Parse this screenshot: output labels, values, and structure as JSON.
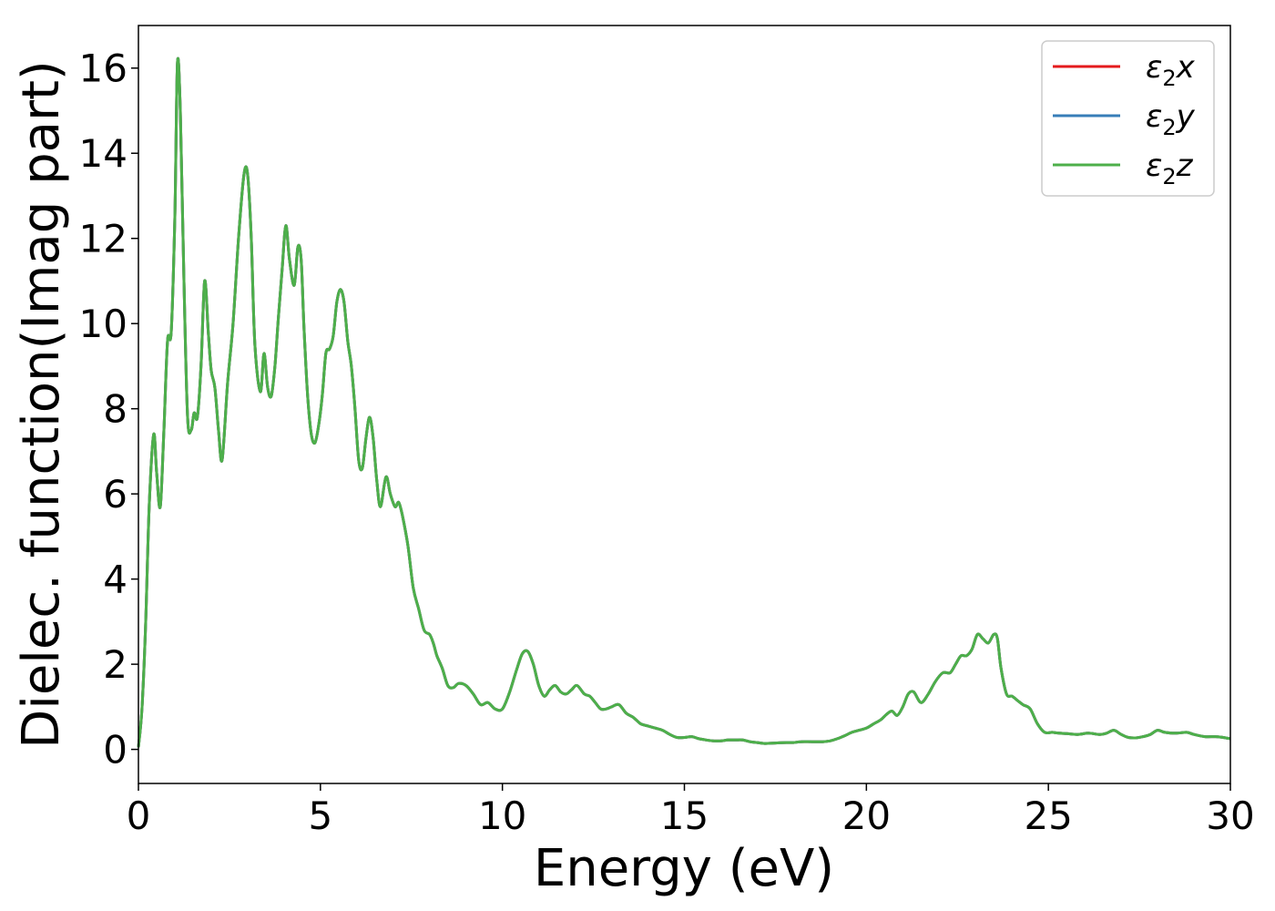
{
  "chart_data": {
    "type": "line",
    "title": "",
    "xlabel": "Energy (eV)",
    "ylabel": "Dielec. function(Imag part)",
    "xlim": [
      0,
      30
    ],
    "ylim": [
      -0.8,
      17
    ],
    "xticks": [
      0,
      5,
      10,
      15,
      20,
      25,
      30
    ],
    "yticks": [
      0,
      2,
      4,
      6,
      8,
      10,
      12,
      14,
      16
    ],
    "grid": false,
    "legend_position": "top-right",
    "x": [
      0,
      0.1,
      0.2,
      0.3,
      0.42,
      0.5,
      0.6,
      0.7,
      0.8,
      0.9,
      1.0,
      1.07,
      1.15,
      1.25,
      1.35,
      1.45,
      1.53,
      1.62,
      1.72,
      1.82,
      1.92,
      2.0,
      2.1,
      2.2,
      2.3,
      2.45,
      2.6,
      2.75,
      2.9,
      3.0,
      3.1,
      3.2,
      3.35,
      3.45,
      3.55,
      3.65,
      3.75,
      3.85,
      3.95,
      4.05,
      4.15,
      4.28,
      4.38,
      4.47,
      4.55,
      4.65,
      4.75,
      4.85,
      4.95,
      5.05,
      5.15,
      5.25,
      5.35,
      5.45,
      5.55,
      5.65,
      5.75,
      5.85,
      5.95,
      6.05,
      6.15,
      6.25,
      6.35,
      6.45,
      6.55,
      6.65,
      6.8,
      6.92,
      7.05,
      7.15,
      7.25,
      7.4,
      7.55,
      7.7,
      7.85,
      8.0,
      8.1,
      8.2,
      8.35,
      8.5,
      8.65,
      8.8,
      9.0,
      9.2,
      9.4,
      9.6,
      9.8,
      10.0,
      10.2,
      10.4,
      10.55,
      10.7,
      10.85,
      11.0,
      11.15,
      11.3,
      11.45,
      11.6,
      11.75,
      11.9,
      12.05,
      12.25,
      12.4,
      12.55,
      12.7,
      12.85,
      13.0,
      13.2,
      13.4,
      13.6,
      13.8,
      14.0,
      14.2,
      14.4,
      14.6,
      14.8,
      15.0,
      15.2,
      15.4,
      15.6,
      15.8,
      16.0,
      16.2,
      16.4,
      16.6,
      16.8,
      17.0,
      17.2,
      17.5,
      17.8,
      18.0,
      18.2,
      18.5,
      18.8,
      19.0,
      19.2,
      19.4,
      19.6,
      19.8,
      20.0,
      20.2,
      20.4,
      20.55,
      20.7,
      20.85,
      21.0,
      21.15,
      21.3,
      21.5,
      21.7,
      21.9,
      22.1,
      22.3,
      22.45,
      22.6,
      22.75,
      22.9,
      23.05,
      23.2,
      23.35,
      23.5,
      23.6,
      23.7,
      23.85,
      24.0,
      24.15,
      24.3,
      24.5,
      24.7,
      24.9,
      25.1,
      25.3,
      25.5,
      25.8,
      26.1,
      26.4,
      26.6,
      26.8,
      27.0,
      27.2,
      27.4,
      27.6,
      27.8,
      28.0,
      28.2,
      28.5,
      28.8,
      29.0,
      29.3,
      29.6,
      29.8,
      30.0
    ],
    "series": [
      {
        "name": "ε₂x",
        "name_base": "ε",
        "name_sub": "2",
        "name_suffix": "x",
        "color": "#e41a1c",
        "y": [
          0.05,
          1.0,
          3.0,
          5.8,
          7.4,
          6.5,
          5.7,
          7.5,
          9.6,
          9.8,
          12.5,
          16.1,
          15.0,
          11.0,
          7.8,
          7.5,
          7.9,
          7.8,
          9.0,
          11.0,
          9.8,
          8.9,
          8.5,
          7.5,
          6.8,
          8.6,
          10.0,
          12.0,
          13.5,
          13.5,
          12.0,
          9.5,
          8.4,
          9.3,
          8.5,
          8.3,
          9.0,
          10.2,
          11.3,
          12.3,
          11.5,
          10.9,
          11.8,
          11.5,
          9.9,
          8.3,
          7.4,
          7.2,
          7.6,
          8.3,
          9.3,
          9.4,
          9.7,
          10.5,
          10.8,
          10.5,
          9.6,
          9.0,
          8.0,
          6.8,
          6.6,
          7.3,
          7.8,
          7.3,
          6.3,
          5.7,
          6.4,
          6.0,
          5.7,
          5.8,
          5.5,
          4.8,
          3.8,
          3.3,
          2.8,
          2.7,
          2.5,
          2.2,
          1.9,
          1.5,
          1.45,
          1.55,
          1.5,
          1.3,
          1.05,
          1.1,
          0.95,
          0.95,
          1.35,
          1.9,
          2.25,
          2.3,
          2.0,
          1.5,
          1.25,
          1.4,
          1.5,
          1.35,
          1.3,
          1.4,
          1.5,
          1.3,
          1.25,
          1.1,
          0.95,
          0.95,
          1.0,
          1.05,
          0.85,
          0.75,
          0.6,
          0.55,
          0.5,
          0.45,
          0.35,
          0.28,
          0.28,
          0.3,
          0.25,
          0.22,
          0.2,
          0.2,
          0.22,
          0.22,
          0.22,
          0.18,
          0.16,
          0.14,
          0.15,
          0.16,
          0.16,
          0.18,
          0.18,
          0.18,
          0.2,
          0.25,
          0.32,
          0.4,
          0.45,
          0.5,
          0.6,
          0.7,
          0.82,
          0.9,
          0.8,
          1.0,
          1.3,
          1.35,
          1.1,
          1.3,
          1.6,
          1.8,
          1.8,
          2.0,
          2.2,
          2.2,
          2.35,
          2.7,
          2.6,
          2.5,
          2.7,
          2.6,
          1.9,
          1.3,
          1.25,
          1.15,
          1.05,
          0.95,
          0.6,
          0.4,
          0.4,
          0.38,
          0.37,
          0.35,
          0.38,
          0.35,
          0.38,
          0.45,
          0.35,
          0.28,
          0.27,
          0.3,
          0.35,
          0.45,
          0.4,
          0.38,
          0.4,
          0.35,
          0.3,
          0.3,
          0.28,
          0.25
        ]
      },
      {
        "name": "ε₂y",
        "name_base": "ε",
        "name_sub": "2",
        "name_suffix": "y",
        "color": "#377eb8",
        "y": [
          0.05,
          1.0,
          3.0,
          5.8,
          7.4,
          6.5,
          5.7,
          7.5,
          9.6,
          9.8,
          12.5,
          16.1,
          15.0,
          11.0,
          7.8,
          7.5,
          7.9,
          7.8,
          9.0,
          11.0,
          9.8,
          8.9,
          8.5,
          7.5,
          6.8,
          8.6,
          10.0,
          12.0,
          13.5,
          13.5,
          12.0,
          9.5,
          8.4,
          9.3,
          8.5,
          8.3,
          9.0,
          10.2,
          11.3,
          12.3,
          11.5,
          10.9,
          11.8,
          11.5,
          9.9,
          8.3,
          7.4,
          7.2,
          7.6,
          8.3,
          9.3,
          9.4,
          9.7,
          10.5,
          10.8,
          10.5,
          9.6,
          9.0,
          8.0,
          6.8,
          6.6,
          7.3,
          7.8,
          7.3,
          6.3,
          5.7,
          6.4,
          6.0,
          5.7,
          5.8,
          5.5,
          4.8,
          3.8,
          3.3,
          2.8,
          2.7,
          2.5,
          2.2,
          1.9,
          1.5,
          1.45,
          1.55,
          1.5,
          1.3,
          1.05,
          1.1,
          0.95,
          0.95,
          1.35,
          1.9,
          2.25,
          2.3,
          2.0,
          1.5,
          1.25,
          1.4,
          1.5,
          1.35,
          1.3,
          1.4,
          1.5,
          1.3,
          1.25,
          1.1,
          0.95,
          0.95,
          1.0,
          1.05,
          0.85,
          0.75,
          0.6,
          0.55,
          0.5,
          0.45,
          0.35,
          0.28,
          0.28,
          0.3,
          0.25,
          0.22,
          0.2,
          0.2,
          0.22,
          0.22,
          0.22,
          0.18,
          0.16,
          0.14,
          0.15,
          0.16,
          0.16,
          0.18,
          0.18,
          0.18,
          0.2,
          0.25,
          0.32,
          0.4,
          0.45,
          0.5,
          0.6,
          0.7,
          0.82,
          0.9,
          0.8,
          1.0,
          1.3,
          1.35,
          1.1,
          1.3,
          1.6,
          1.8,
          1.8,
          2.0,
          2.2,
          2.2,
          2.35,
          2.7,
          2.6,
          2.5,
          2.7,
          2.6,
          1.9,
          1.3,
          1.25,
          1.15,
          1.05,
          0.95,
          0.6,
          0.4,
          0.4,
          0.38,
          0.37,
          0.35,
          0.38,
          0.35,
          0.38,
          0.45,
          0.35,
          0.28,
          0.27,
          0.3,
          0.35,
          0.45,
          0.4,
          0.38,
          0.4,
          0.35,
          0.3,
          0.3,
          0.28,
          0.25
        ]
      },
      {
        "name": "ε₂z",
        "name_base": "ε",
        "name_sub": "2",
        "name_suffix": "z",
        "color": "#4daf4a",
        "y": [
          0.05,
          1.0,
          3.0,
          5.8,
          7.4,
          6.5,
          5.7,
          7.5,
          9.6,
          9.8,
          12.5,
          16.1,
          15.0,
          11.0,
          7.8,
          7.5,
          7.9,
          7.8,
          9.0,
          11.0,
          9.8,
          8.9,
          8.5,
          7.5,
          6.8,
          8.6,
          10.0,
          12.0,
          13.5,
          13.5,
          12.0,
          9.5,
          8.4,
          9.3,
          8.5,
          8.3,
          9.0,
          10.2,
          11.3,
          12.3,
          11.5,
          10.9,
          11.8,
          11.5,
          9.9,
          8.3,
          7.4,
          7.2,
          7.6,
          8.3,
          9.3,
          9.4,
          9.7,
          10.5,
          10.8,
          10.5,
          9.6,
          9.0,
          8.0,
          6.8,
          6.6,
          7.3,
          7.8,
          7.3,
          6.3,
          5.7,
          6.4,
          6.0,
          5.7,
          5.8,
          5.5,
          4.8,
          3.8,
          3.3,
          2.8,
          2.7,
          2.5,
          2.2,
          1.9,
          1.5,
          1.45,
          1.55,
          1.5,
          1.3,
          1.05,
          1.1,
          0.95,
          0.95,
          1.35,
          1.9,
          2.25,
          2.3,
          2.0,
          1.5,
          1.25,
          1.4,
          1.5,
          1.35,
          1.3,
          1.4,
          1.5,
          1.3,
          1.25,
          1.1,
          0.95,
          0.95,
          1.0,
          1.05,
          0.85,
          0.75,
          0.6,
          0.55,
          0.5,
          0.45,
          0.35,
          0.28,
          0.28,
          0.3,
          0.25,
          0.22,
          0.2,
          0.2,
          0.22,
          0.22,
          0.22,
          0.18,
          0.16,
          0.14,
          0.15,
          0.16,
          0.16,
          0.18,
          0.18,
          0.18,
          0.2,
          0.25,
          0.32,
          0.4,
          0.45,
          0.5,
          0.6,
          0.7,
          0.82,
          0.9,
          0.8,
          1.0,
          1.3,
          1.35,
          1.1,
          1.3,
          1.6,
          1.8,
          1.8,
          2.0,
          2.2,
          2.2,
          2.35,
          2.7,
          2.6,
          2.5,
          2.7,
          2.6,
          1.9,
          1.3,
          1.25,
          1.15,
          1.05,
          0.95,
          0.6,
          0.4,
          0.4,
          0.38,
          0.37,
          0.35,
          0.38,
          0.35,
          0.38,
          0.45,
          0.35,
          0.28,
          0.27,
          0.3,
          0.35,
          0.45,
          0.4,
          0.38,
          0.4,
          0.35,
          0.3,
          0.3,
          0.28,
          0.25
        ]
      }
    ]
  }
}
